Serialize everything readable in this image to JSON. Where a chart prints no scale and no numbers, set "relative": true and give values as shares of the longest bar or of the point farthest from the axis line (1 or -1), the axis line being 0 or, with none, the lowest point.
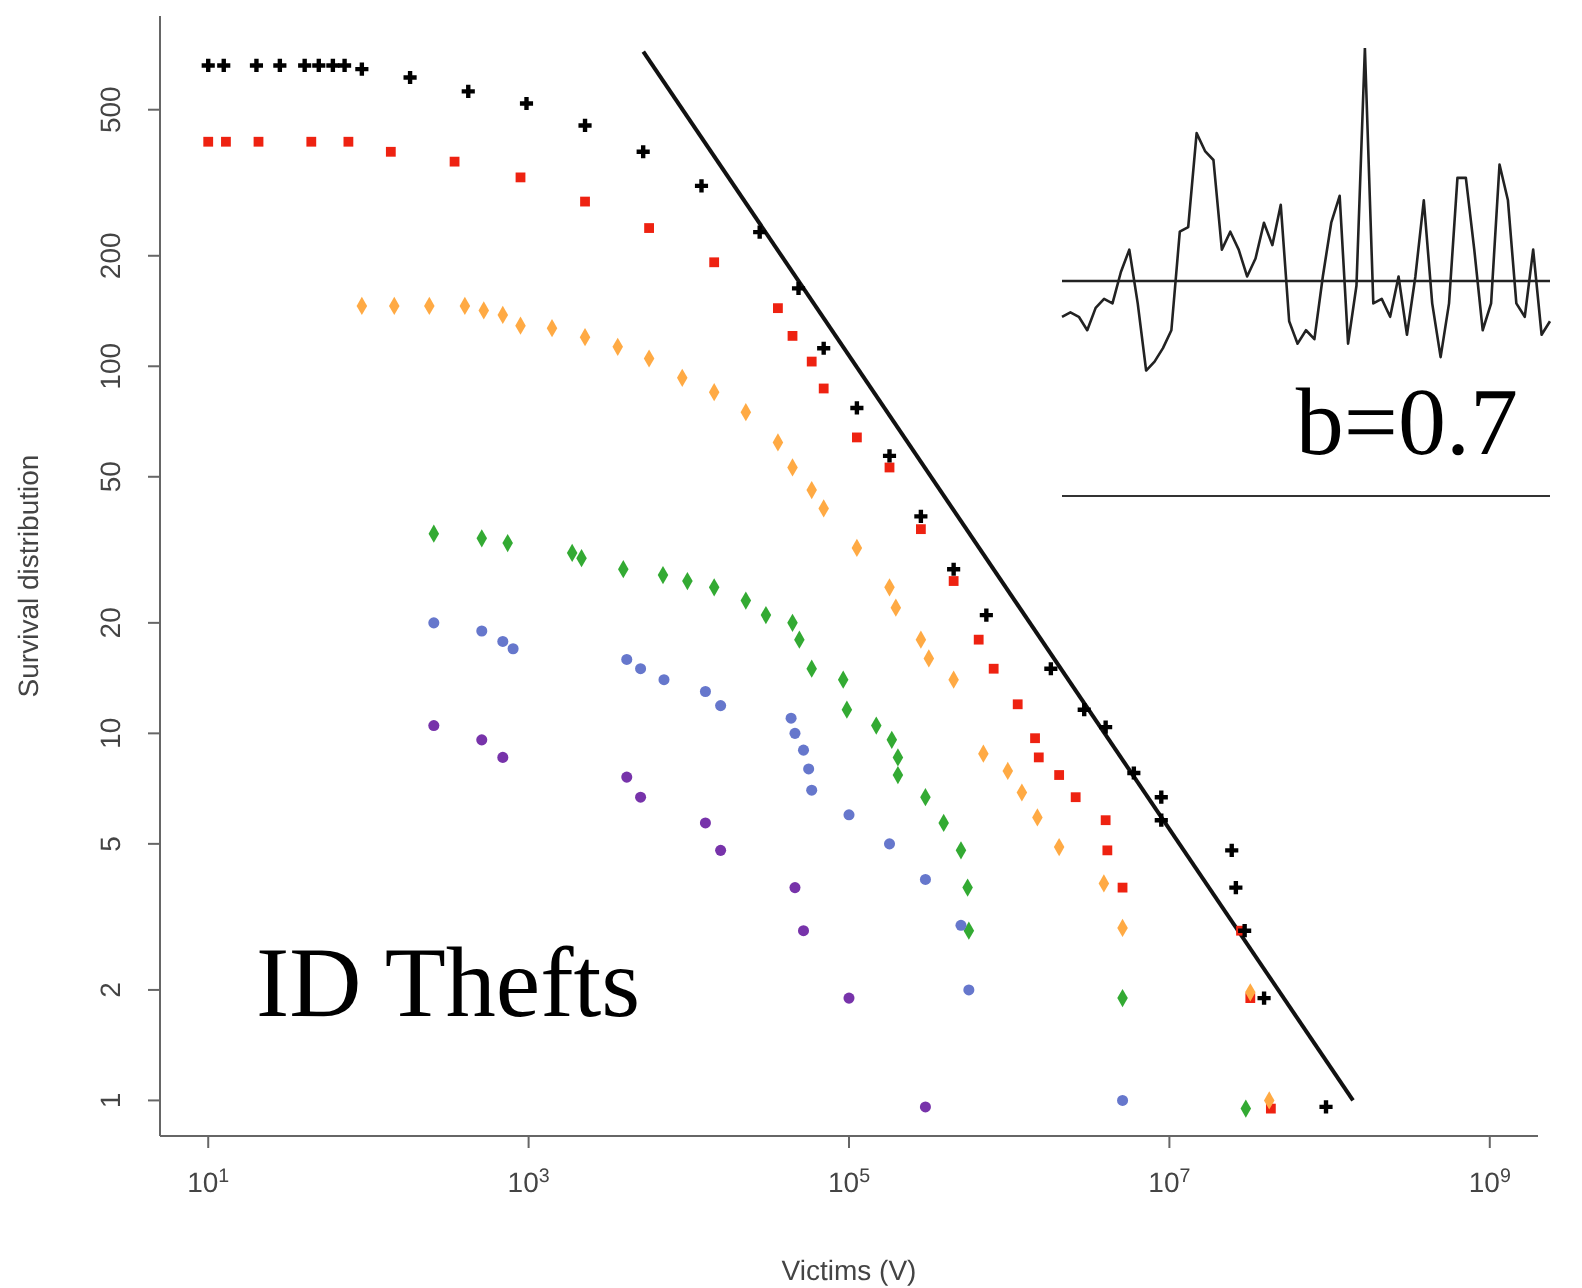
{
  "chart_data": [
    {
      "type": "scatter",
      "xlabel": "Victims (V)",
      "ylabel": "Survival distribution",
      "annotations": [
        "ID Thefts"
      ],
      "log": "xy",
      "xlim": [
        5,
        2000000000
      ],
      "ylim": [
        0.8,
        900
      ],
      "xticks": [
        {
          "value": 10,
          "label": "10$^{1}$"
        },
        {
          "value": 1000,
          "label": "10$^{3}$"
        },
        {
          "value": 100000,
          "label": "10$^{5}$"
        },
        {
          "value": 10000000,
          "label": "10$^{7}$"
        },
        {
          "value": 1000000000,
          "label": "10$^{9}$"
        }
      ],
      "yticks": [
        1,
        2,
        5,
        10,
        20,
        50,
        100,
        200,
        500
      ],
      "series": [
        {
          "color": "#000000",
          "marker": "cross",
          "x": [
            10,
            12.5,
            20,
            28,
            40,
            49,
            60,
            71,
            91,
            182,
            420,
            970,
            2250,
            5190,
            12000,
            27700,
            48400,
            69500,
            112000,
            179000,
            281000,
            450000,
            720000,
            1820000,
            2940000,
            4000000,
            6000000,
            8900000,
            8900000,
            24500000,
            26000000,
            29500000,
            39000000,
            95000000
          ],
          "values": [
            660,
            660,
            660,
            660,
            660,
            660,
            660,
            660,
            645,
            612,
            561,
            520,
            453,
            384,
            310,
            232,
            163,
            112,
            77,
            57,
            39,
            28,
            21,
            15,
            11.6,
            10.4,
            7.8,
            6.7,
            5.8,
            4.8,
            3.8,
            2.9,
            1.9,
            0.96
          ]
        },
        {
          "color": "#ee2211",
          "marker": "square",
          "x": [
            10,
            12.9,
            20.6,
            44,
            75,
            138,
            345,
            890,
            2250,
            5650,
            14400,
            36000,
            44400,
            58500,
            69500,
            112000,
            179000,
            281000,
            450000,
            645000,
            800000,
            1130000,
            1450000,
            1530000,
            2050000,
            2600000,
            4000000,
            4100000,
            5100000,
            28000000,
            32000000,
            43000000
          ],
          "values": [
            409,
            409,
            409,
            409,
            409,
            384,
            361,
            327,
            281,
            238,
            192,
            144,
            121,
            103,
            87,
            64,
            53,
            36,
            26,
            18,
            15,
            12,
            9.7,
            8.6,
            7.7,
            6.7,
            5.8,
            4.8,
            3.8,
            2.9,
            1.9,
            0.95
          ]
        },
        {
          "color": "#ffaa44",
          "marker": "diamond",
          "x": [
            91,
            145,
            240,
            400,
            525,
            690,
            890,
            1400,
            2250,
            3600,
            5650,
            9100,
            14400,
            22700,
            36000,
            44400,
            58500,
            69500,
            112000,
            179000,
            196000,
            281000,
            315000,
            450000,
            690000,
            980000,
            1200000,
            1500000,
            2050000,
            3900000,
            5100000,
            32000000,
            42000000
          ],
          "values": [
            146,
            146,
            146,
            146,
            142,
            138,
            129,
            127,
            120,
            113,
            105,
            93,
            85,
            75,
            62,
            53,
            46,
            41,
            32,
            25,
            22,
            18,
            16,
            14,
            8.8,
            7.9,
            6.9,
            5.9,
            4.9,
            3.9,
            2.95,
            1.97,
            1
          ]
        },
        {
          "color": "#33aa33",
          "marker": "diamond",
          "x": [
            256,
            510,
            740,
            1870,
            2140,
            3900,
            6900,
            9800,
            14400,
            22700,
            30300,
            44400,
            49000,
            58500,
            92000,
            97000,
            148000,
            185000,
            202000,
            202000,
            300000,
            390000,
            500000,
            550000,
            560000,
            5100000,
            30000000
          ],
          "values": [
            35,
            34,
            33,
            31,
            30,
            28,
            27,
            26,
            25,
            23,
            21,
            20,
            18,
            15,
            14,
            11.6,
            10.5,
            9.6,
            8.6,
            7.7,
            6.7,
            5.7,
            4.8,
            3.8,
            2.9,
            1.9,
            0.95
          ]
        },
        {
          "color": "#6677cc",
          "marker": "circle",
          "x": [
            256,
            510,
            690,
            800,
            4100,
            5000,
            7000,
            12700,
            15800,
            43500,
            46000,
            52000,
            56000,
            58500,
            100000,
            179000,
            300000,
            500000,
            560000,
            5100000
          ],
          "values": [
            20,
            19,
            17.8,
            17,
            15.9,
            15,
            14,
            13,
            11.9,
            11,
            10,
            9,
            8,
            7,
            6,
            5,
            4,
            3,
            2,
            1
          ]
        },
        {
          "color": "#7733aa",
          "marker": "circle",
          "x": [
            256,
            510,
            690,
            4100,
            5000,
            12700,
            15800,
            46000,
            52000,
            100000,
            300000
          ],
          "values": [
            10.5,
            9.6,
            8.6,
            7.6,
            6.7,
            5.7,
            4.8,
            3.8,
            2.9,
            1.9,
            0.96
          ]
        },
        {
          "type": "line",
          "color": "#111111",
          "marker": "none",
          "x": [
            5200,
            140000000
          ],
          "values": [
            720,
            1
          ]
        }
      ]
    },
    {
      "type": "line",
      "relative": true,
      "annotations": [
        "b=0.7"
      ],
      "categories": [
        null,
        null,
        null,
        null,
        null,
        null,
        null,
        null,
        null,
        null,
        null,
        null,
        null,
        null,
        null,
        null,
        null,
        null,
        null,
        null,
        null,
        null,
        null,
        null,
        null,
        null,
        null,
        null,
        null,
        null,
        null,
        null,
        null,
        null,
        null,
        null,
        null,
        null,
        null,
        null,
        null,
        null,
        null,
        null,
        null,
        null,
        null,
        null,
        null,
        null,
        null,
        null,
        null,
        null,
        null,
        null,
        null,
        null,
        null
      ],
      "ref_lines": [
        {
          "axis": "y",
          "value": 0.48,
          "color": "#222222"
        }
      ],
      "series": [
        {
          "color": "#222222",
          "values": [
            0.4,
            0.41,
            0.4,
            0.37,
            0.42,
            0.44,
            0.43,
            0.5,
            0.55,
            0.43,
            0.28,
            0.3,
            0.33,
            0.37,
            0.59,
            0.6,
            0.81,
            0.77,
            0.75,
            0.55,
            0.59,
            0.55,
            0.49,
            0.53,
            0.61,
            0.56,
            0.65,
            0.39,
            0.34,
            0.37,
            0.35,
            0.49,
            0.61,
            0.67,
            0.34,
            0.47,
            1,
            0.43,
            0.44,
            0.4,
            0.49,
            0.36,
            0.49,
            0.66,
            0.43,
            0.31,
            0.43,
            0.71,
            0.71,
            0.55,
            0.37,
            0.43,
            0.74,
            0.66,
            0.43,
            0.4,
            0.55,
            0.36,
            0.39
          ]
        }
      ]
    }
  ]
}
